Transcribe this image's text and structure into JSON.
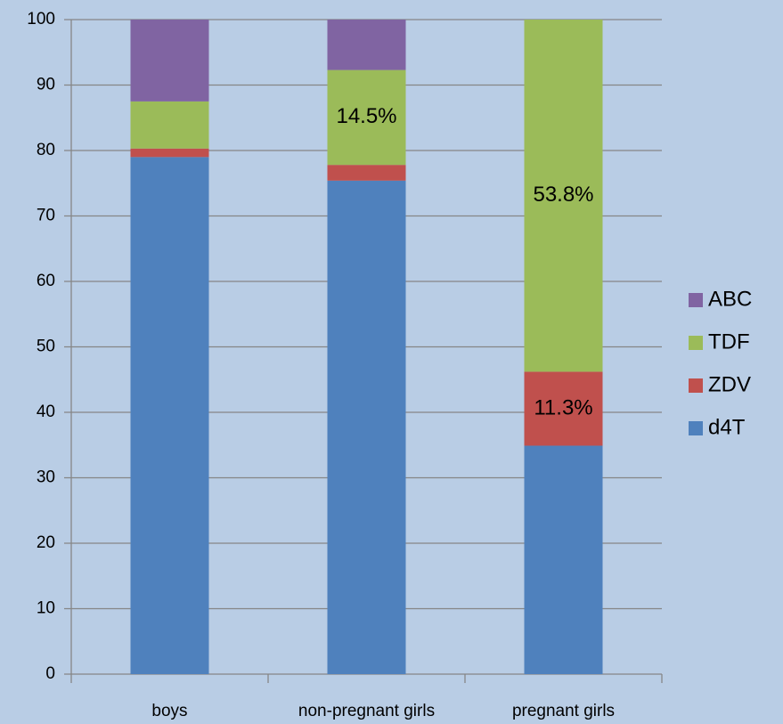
{
  "chart_data": {
    "type": "stacked_bar",
    "categories": [
      "boys",
      "non-pregnant girls",
      "pregnant girls"
    ],
    "series": [
      {
        "name": "d4T",
        "color": "#4f81bd",
        "values": [
          79.0,
          75.4,
          34.9
        ]
      },
      {
        "name": "ZDV",
        "color": "#c0504d",
        "values": [
          1.3,
          2.4,
          11.3
        ],
        "value_labels": [
          null,
          null,
          "11.3%"
        ]
      },
      {
        "name": "TDF",
        "color": "#9bbb59",
        "values": [
          7.2,
          14.5,
          53.8
        ],
        "value_labels": [
          null,
          "14.5%",
          "53.8%"
        ]
      },
      {
        "name": "ABC",
        "color": "#8064a2",
        "values": [
          12.5,
          7.7,
          0
        ]
      }
    ],
    "ylim": [
      0,
      100
    ],
    "yticks": [
      0,
      10,
      20,
      30,
      40,
      50,
      60,
      70,
      80,
      90,
      100
    ],
    "grid": true,
    "legend": "right"
  }
}
